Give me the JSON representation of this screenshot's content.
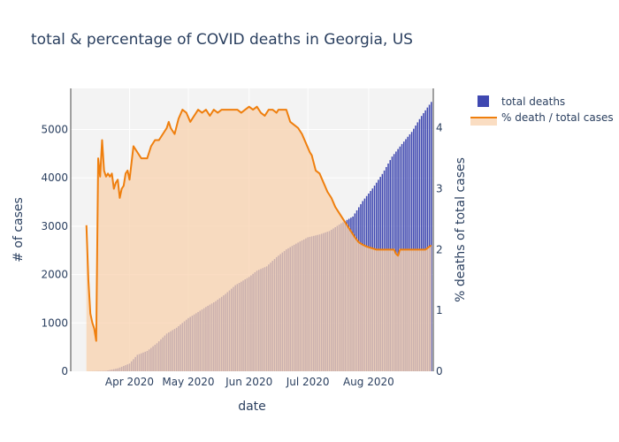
{
  "chart_data": {
    "type": "bar+line",
    "title": "total & percentage of COVID deaths in Georgia, US",
    "xlabel": "date",
    "ylabel_left": "# of cases",
    "ylabel_right": "% deaths of total cases",
    "x_range": [
      "2020-03-02",
      "2020-09-03"
    ],
    "y_left_range": [
      0,
      5850
    ],
    "y_right_range": [
      0,
      4.65
    ],
    "x_ticks": [
      {
        "date": "2020-04-01",
        "label": "Apr 2020"
      },
      {
        "date": "2020-05-01",
        "label": "May 2020"
      },
      {
        "date": "2020-06-01",
        "label": "Jun 2020"
      },
      {
        "date": "2020-07-01",
        "label": "Jul 2020"
      },
      {
        "date": "2020-08-01",
        "label": "Aug 2020"
      }
    ],
    "y_left_ticks": [
      0,
      1000,
      2000,
      3000,
      4000,
      5000
    ],
    "y_right_ticks": [
      0,
      1,
      2,
      3,
      4
    ],
    "colors": {
      "bars": "#3f48b1",
      "line": "#ef7f0e",
      "fill": "#f8d2ad",
      "plot_bg": "#f3f3f3",
      "grid": "#ffffff"
    },
    "legend_position": "top-right",
    "series": [
      {
        "name": "total deaths",
        "kind": "bar",
        "axis": "left",
        "anchors": [
          [
            "2020-03-10",
            0
          ],
          [
            "2020-03-20",
            10
          ],
          [
            "2020-03-26",
            60
          ],
          [
            "2020-04-01",
            160
          ],
          [
            "2020-04-05",
            340
          ],
          [
            "2020-04-10",
            420
          ],
          [
            "2020-04-15",
            580
          ],
          [
            "2020-04-20",
            780
          ],
          [
            "2020-04-25",
            900
          ],
          [
            "2020-05-01",
            1100
          ],
          [
            "2020-05-05",
            1200
          ],
          [
            "2020-05-10",
            1330
          ],
          [
            "2020-05-15",
            1450
          ],
          [
            "2020-05-20",
            1600
          ],
          [
            "2020-05-25",
            1780
          ],
          [
            "2020-06-01",
            1950
          ],
          [
            "2020-06-05",
            2080
          ],
          [
            "2020-06-10",
            2170
          ],
          [
            "2020-06-15",
            2360
          ],
          [
            "2020-06-20",
            2520
          ],
          [
            "2020-06-25",
            2640
          ],
          [
            "2020-07-01",
            2770
          ],
          [
            "2020-07-07",
            2830
          ],
          [
            "2020-07-12",
            2900
          ],
          [
            "2020-07-18",
            3060
          ],
          [
            "2020-07-24",
            3200
          ],
          [
            "2020-07-29",
            3520
          ],
          [
            "2020-08-03",
            3780
          ],
          [
            "2020-08-08",
            4080
          ],
          [
            "2020-08-13",
            4440
          ],
          [
            "2020-08-18",
            4700
          ],
          [
            "2020-08-23",
            4950
          ],
          [
            "2020-08-28",
            5280
          ],
          [
            "2020-09-02",
            5570
          ]
        ]
      },
      {
        "name": "% death / total cases",
        "kind": "line+area",
        "axis": "right",
        "points": [
          [
            "2020-03-10",
            2.4
          ],
          [
            "2020-03-11",
            1.5
          ],
          [
            "2020-03-12",
            0.95
          ],
          [
            "2020-03-13",
            0.8
          ],
          [
            "2020-03-14",
            0.7
          ],
          [
            "2020-03-15",
            0.5
          ],
          [
            "2020-03-16",
            3.5
          ],
          [
            "2020-03-17",
            3.2
          ],
          [
            "2020-03-18",
            3.8
          ],
          [
            "2020-03-19",
            3.3
          ],
          [
            "2020-03-20",
            3.2
          ],
          [
            "2020-03-21",
            3.25
          ],
          [
            "2020-03-22",
            3.2
          ],
          [
            "2020-03-23",
            3.25
          ],
          [
            "2020-03-24",
            3.0
          ],
          [
            "2020-03-25",
            3.1
          ],
          [
            "2020-03-26",
            3.15
          ],
          [
            "2020-03-27",
            2.85
          ],
          [
            "2020-03-28",
            3.0
          ],
          [
            "2020-03-29",
            3.05
          ],
          [
            "2020-03-30",
            3.25
          ],
          [
            "2020-03-31",
            3.3
          ],
          [
            "2020-04-01",
            3.15
          ],
          [
            "2020-04-03",
            3.7
          ],
          [
            "2020-04-05",
            3.6
          ],
          [
            "2020-04-07",
            3.5
          ],
          [
            "2020-04-10",
            3.5
          ],
          [
            "2020-04-12",
            3.7
          ],
          [
            "2020-04-14",
            3.8
          ],
          [
            "2020-04-16",
            3.8
          ],
          [
            "2020-04-18",
            3.9
          ],
          [
            "2020-04-20",
            4.0
          ],
          [
            "2020-04-21",
            4.1
          ],
          [
            "2020-04-22",
            4.0
          ],
          [
            "2020-04-24",
            3.9
          ],
          [
            "2020-04-26",
            4.15
          ],
          [
            "2020-04-28",
            4.3
          ],
          [
            "2020-04-30",
            4.25
          ],
          [
            "2020-05-02",
            4.1
          ],
          [
            "2020-05-04",
            4.2
          ],
          [
            "2020-05-06",
            4.3
          ],
          [
            "2020-05-08",
            4.25
          ],
          [
            "2020-05-10",
            4.3
          ],
          [
            "2020-05-12",
            4.2
          ],
          [
            "2020-05-14",
            4.3
          ],
          [
            "2020-05-16",
            4.25
          ],
          [
            "2020-05-18",
            4.3
          ],
          [
            "2020-05-22",
            4.3
          ],
          [
            "2020-05-26",
            4.3
          ],
          [
            "2020-05-28",
            4.25
          ],
          [
            "2020-05-30",
            4.3
          ],
          [
            "2020-06-01",
            4.35
          ],
          [
            "2020-06-03",
            4.3
          ],
          [
            "2020-06-05",
            4.35
          ],
          [
            "2020-06-07",
            4.25
          ],
          [
            "2020-06-09",
            4.2
          ],
          [
            "2020-06-11",
            4.3
          ],
          [
            "2020-06-13",
            4.3
          ],
          [
            "2020-06-15",
            4.25
          ],
          [
            "2020-06-16",
            4.3
          ],
          [
            "2020-06-18",
            4.3
          ],
          [
            "2020-06-20",
            4.3
          ],
          [
            "2020-06-22",
            4.1
          ],
          [
            "2020-06-24",
            4.05
          ],
          [
            "2020-06-26",
            4.0
          ],
          [
            "2020-06-28",
            3.9
          ],
          [
            "2020-06-30",
            3.75
          ],
          [
            "2020-07-02",
            3.6
          ],
          [
            "2020-07-03",
            3.55
          ],
          [
            "2020-07-05",
            3.3
          ],
          [
            "2020-07-07",
            3.25
          ],
          [
            "2020-07-09",
            3.1
          ],
          [
            "2020-07-11",
            2.95
          ],
          [
            "2020-07-13",
            2.85
          ],
          [
            "2020-07-15",
            2.7
          ],
          [
            "2020-07-17",
            2.6
          ],
          [
            "2020-07-19",
            2.5
          ],
          [
            "2020-07-21",
            2.4
          ],
          [
            "2020-07-23",
            2.3
          ],
          [
            "2020-07-25",
            2.2
          ],
          [
            "2020-07-27",
            2.12
          ],
          [
            "2020-07-29",
            2.08
          ],
          [
            "2020-07-31",
            2.05
          ],
          [
            "2020-08-05",
            2.0
          ],
          [
            "2020-08-10",
            2.0
          ],
          [
            "2020-08-14",
            2.0
          ],
          [
            "2020-08-15",
            1.93
          ],
          [
            "2020-08-16",
            1.9
          ],
          [
            "2020-08-17",
            2.0
          ],
          [
            "2020-08-20",
            2.0
          ],
          [
            "2020-08-25",
            2.0
          ],
          [
            "2020-08-30",
            2.0
          ],
          [
            "2020-09-01",
            2.05
          ],
          [
            "2020-09-02",
            2.07
          ]
        ]
      }
    ]
  }
}
